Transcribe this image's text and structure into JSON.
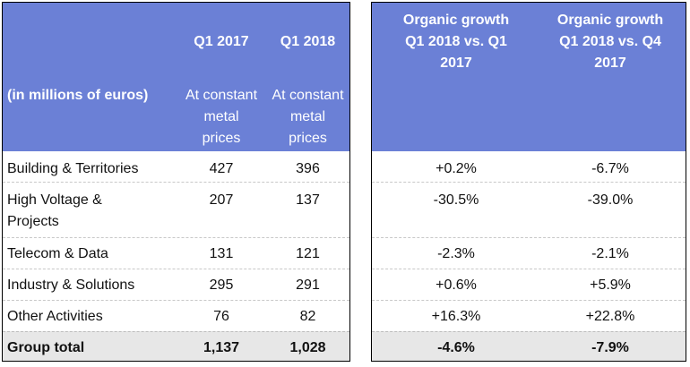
{
  "header": {
    "unit_label": "(in millions of euros)",
    "col_q1_2017": "Q1 2017",
    "col_q1_2018": "Q1 2018",
    "constant_line1": "At constant",
    "constant_line2": "metal",
    "constant_line3": "prices",
    "growth_q1_line1": "Organic growth",
    "growth_q1_line2": "Q1 2018 vs. Q1",
    "growth_q1_line3": "2017",
    "growth_q4_line1": "Organic growth",
    "growth_q4_line2": "Q1 2018 vs. Q4",
    "growth_q4_line3": "2017"
  },
  "rows": [
    {
      "label_line1": "Building & Territories",
      "label_line2": "",
      "q1_2017": "427",
      "q1_2018": "396",
      "growth_q1": "+0.2%",
      "growth_q4": "-6.7%"
    },
    {
      "label_line1": "High Voltage &",
      "label_line2": "Projects",
      "q1_2017": "207",
      "q1_2018": "137",
      "growth_q1": "-30.5%",
      "growth_q4": "-39.0%"
    },
    {
      "label_line1": "Telecom & Data",
      "label_line2": "",
      "q1_2017": "131",
      "q1_2018": "121",
      "growth_q1": "-2.3%",
      "growth_q4": "-2.1%"
    },
    {
      "label_line1": "Industry & Solutions",
      "label_line2": "",
      "q1_2017": "295",
      "q1_2018": "291",
      "growth_q1": "+0.6%",
      "growth_q4": "+5.9%"
    },
    {
      "label_line1": "Other Activities",
      "label_line2": "",
      "q1_2017": "76",
      "q1_2018": "82",
      "growth_q1": "+16.3%",
      "growth_q4": "+22.8%"
    }
  ],
  "total": {
    "label": "Group total",
    "q1_2017": "1,137",
    "q1_2018": "1,028",
    "growth_q1": "-4.6%",
    "growth_q4": "-7.9%"
  },
  "colors": {
    "header_bg": "#6b80d6",
    "total_bg": "#e7e7e7"
  }
}
